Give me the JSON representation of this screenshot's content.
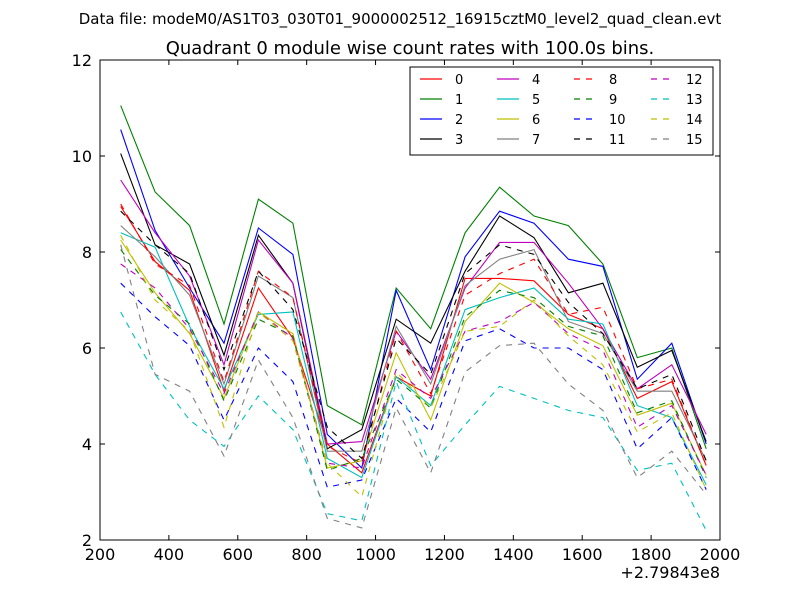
{
  "suptitle": "Data file: modeM0/AS1T03_030T01_9000002512_16915cztM0_level2_quad_clean.evt",
  "chart_data": {
    "type": "line",
    "title": "Quadrant 0 module wise count rates with 100.0s bins.",
    "xlabel": "",
    "ylabel": "",
    "x_offset_label": "+2.79843e8",
    "xlim": [
      200,
      2000
    ],
    "ylim": [
      2,
      12
    ],
    "xticks": [
      200,
      400,
      600,
      800,
      1000,
      1200,
      1400,
      1600,
      1800,
      2000
    ],
    "yticks": [
      2,
      4,
      6,
      8,
      10,
      12
    ],
    "grid": false,
    "legend_position": "top-right",
    "legend_columns": 4,
    "x": [
      260,
      360,
      460,
      560,
      660,
      760,
      860,
      960,
      1060,
      1160,
      1260,
      1360,
      1460,
      1560,
      1660,
      1760,
      1860,
      1960
    ],
    "series": [
      {
        "name": "0",
        "color": "#ff0000",
        "dash": "solid",
        "values": [
          8.95,
          7.8,
          7.2,
          5.1,
          7.25,
          6.2,
          4.0,
          3.4,
          5.4,
          5.0,
          7.45,
          7.45,
          7.4,
          6.7,
          6.4,
          4.95,
          5.3,
          3.55
        ]
      },
      {
        "name": "1",
        "color": "#008000",
        "dash": "solid",
        "values": [
          11.05,
          9.25,
          8.55,
          6.5,
          9.1,
          8.6,
          4.8,
          4.4,
          7.25,
          6.4,
          8.4,
          9.35,
          8.75,
          8.55,
          7.75,
          5.8,
          6.0,
          3.9
        ]
      },
      {
        "name": "2",
        "color": "#0000ff",
        "dash": "solid",
        "values": [
          10.55,
          8.45,
          7.25,
          6.1,
          8.5,
          7.95,
          4.2,
          3.5,
          7.2,
          5.55,
          7.9,
          8.85,
          8.6,
          7.85,
          7.7,
          5.35,
          6.1,
          4.0
        ]
      },
      {
        "name": "3",
        "color": "#000000",
        "dash": "solid",
        "values": [
          10.05,
          8.15,
          7.75,
          5.85,
          8.35,
          7.35,
          3.9,
          4.3,
          6.6,
          6.1,
          7.6,
          8.75,
          8.3,
          7.15,
          7.35,
          5.6,
          5.95,
          4.05
        ]
      },
      {
        "name": "4",
        "color": "#bf00bf",
        "dash": "solid",
        "values": [
          9.5,
          8.4,
          7.5,
          5.65,
          8.25,
          7.35,
          4.0,
          4.05,
          6.35,
          5.35,
          7.25,
          8.2,
          8.2,
          7.35,
          6.4,
          5.15,
          5.65,
          4.2
        ]
      },
      {
        "name": "5",
        "color": "#00bfbf",
        "dash": "solid",
        "values": [
          8.4,
          8.1,
          6.45,
          5.15,
          6.7,
          6.75,
          3.7,
          3.3,
          5.4,
          4.8,
          6.8,
          7.05,
          7.25,
          6.6,
          6.5,
          4.8,
          4.55,
          3.15
        ]
      },
      {
        "name": "6",
        "color": "#bfbf00",
        "dash": "solid",
        "values": [
          8.25,
          7.15,
          6.3,
          4.95,
          6.75,
          6.3,
          3.5,
          3.65,
          5.9,
          4.5,
          6.55,
          7.35,
          6.95,
          6.4,
          6.05,
          4.6,
          4.85,
          3.35
        ]
      },
      {
        "name": "7",
        "color": "#808080",
        "dash": "solid",
        "values": [
          8.55,
          7.9,
          7.1,
          5.25,
          7.5,
          7.05,
          3.85,
          3.85,
          6.45,
          5.25,
          7.3,
          7.85,
          8.05,
          6.55,
          6.3,
          5.1,
          5.1,
          3.65
        ]
      },
      {
        "name": "8",
        "color": "#ff0000",
        "dash": "dashed",
        "values": [
          9.0,
          7.75,
          7.3,
          5.3,
          7.6,
          7.05,
          3.95,
          3.6,
          6.35,
          5.05,
          7.1,
          7.55,
          7.85,
          6.7,
          6.85,
          5.15,
          5.35,
          3.55
        ]
      },
      {
        "name": "9",
        "color": "#008000",
        "dash": "dashed",
        "values": [
          8.05,
          7.1,
          6.5,
          4.9,
          6.6,
          6.25,
          3.45,
          3.7,
          5.35,
          4.75,
          6.65,
          7.2,
          7.05,
          6.45,
          6.25,
          4.65,
          4.9,
          3.3
        ]
      },
      {
        "name": "10",
        "color": "#0000ff",
        "dash": "dashed",
        "values": [
          7.35,
          6.65,
          6.05,
          4.5,
          6.0,
          5.3,
          3.1,
          3.25,
          4.95,
          4.25,
          6.15,
          6.4,
          6.0,
          6.0,
          5.55,
          3.9,
          4.55,
          3.05
        ]
      },
      {
        "name": "11",
        "color": "#000000",
        "dash": "dashed",
        "values": [
          8.85,
          8.15,
          7.55,
          5.55,
          7.6,
          6.8,
          4.35,
          3.7,
          6.2,
          5.45,
          7.55,
          8.15,
          7.95,
          6.95,
          6.3,
          5.15,
          5.45,
          3.65
        ]
      },
      {
        "name": "12",
        "color": "#bf00bf",
        "dash": "dashed",
        "values": [
          7.75,
          7.25,
          6.4,
          5.05,
          6.75,
          6.2,
          3.6,
          3.5,
          5.55,
          4.95,
          6.35,
          6.55,
          6.95,
          6.3,
          5.95,
          4.35,
          4.8,
          3.35
        ]
      },
      {
        "name": "13",
        "color": "#00bfbf",
        "dash": "dashed",
        "values": [
          6.75,
          5.45,
          4.5,
          3.95,
          5.0,
          4.3,
          2.55,
          2.4,
          5.3,
          3.55,
          4.4,
          5.2,
          4.95,
          4.7,
          4.55,
          3.45,
          3.6,
          2.2
        ]
      },
      {
        "name": "14",
        "color": "#bfbf00",
        "dash": "dashed",
        "values": [
          8.35,
          7.0,
          6.35,
          4.35,
          6.75,
          6.15,
          3.6,
          2.9,
          5.5,
          4.75,
          6.35,
          6.45,
          7.0,
          6.25,
          5.65,
          4.25,
          4.65,
          3.05
        ]
      },
      {
        "name": "15",
        "color": "#808080",
        "dash": "dashed",
        "values": [
          8.15,
          5.45,
          5.1,
          3.75,
          5.75,
          4.55,
          2.45,
          2.25,
          4.75,
          3.4,
          5.5,
          6.05,
          6.1,
          5.25,
          4.7,
          3.3,
          3.85,
          2.95
        ]
      }
    ]
  }
}
